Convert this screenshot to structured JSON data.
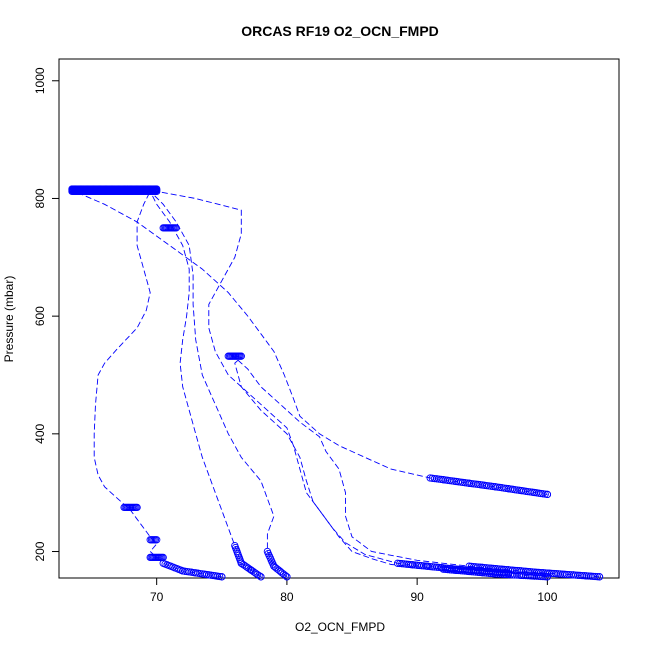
{
  "chart_data": {
    "type": "scatter",
    "title": "ORCAS RF19 O2_OCN_FMPD",
    "xlabel": "O2_OCN_FMPD",
    "ylabel": "Pressure (mbar)",
    "xlim": [
      62.5,
      105.5
    ],
    "ylim": [
      1037,
      155
    ],
    "y_reversed": true,
    "x_ticks": [
      70,
      80,
      90,
      100
    ],
    "y_ticks": [
      200,
      400,
      600,
      800,
      1000
    ],
    "grid": false,
    "legend": "none",
    "marker_color": "#0000ff",
    "series": [
      {
        "points": [
          [
            75,
            157
          ],
          [
            72,
            167
          ],
          [
            70.5,
            180
          ],
          [
            70,
            190
          ],
          [
            69.5,
            200
          ],
          [
            70,
            213
          ],
          [
            69.5,
            225
          ],
          [
            68.5,
            255
          ],
          [
            68,
            270
          ],
          [
            67,
            290
          ],
          [
            66,
            310
          ],
          [
            65.5,
            330
          ],
          [
            65.2,
            360
          ],
          [
            65.2,
            400
          ],
          [
            65.3,
            450
          ],
          [
            65.5,
            500
          ],
          [
            66,
            520
          ],
          [
            67,
            545
          ],
          [
            68.5,
            580
          ],
          [
            69.2,
            610
          ],
          [
            69.5,
            640
          ],
          [
            69,
            680
          ],
          [
            68.5,
            720
          ],
          [
            68.5,
            760
          ],
          [
            69,
            790
          ],
          [
            69.5,
            812
          ],
          [
            67,
            814
          ],
          [
            64,
            814
          ],
          [
            63.5,
            814
          ]
        ]
      },
      {
        "points": [
          [
            78,
            157
          ],
          [
            76.5,
            180
          ],
          [
            76,
            210
          ],
          [
            75.5,
            240
          ],
          [
            75,
            270
          ],
          [
            74.5,
            300
          ],
          [
            74,
            330
          ],
          [
            73.5,
            360
          ],
          [
            73,
            400
          ],
          [
            72.5,
            440
          ],
          [
            72,
            480
          ],
          [
            71.8,
            520
          ],
          [
            72,
            560
          ],
          [
            72.3,
            600
          ],
          [
            72.5,
            640
          ],
          [
            72.5,
            680
          ],
          [
            72,
            720
          ],
          [
            71,
            760
          ],
          [
            70,
            790
          ],
          [
            69.5,
            812
          ]
        ]
      },
      {
        "points": [
          [
            80,
            157
          ],
          [
            79,
            175
          ],
          [
            78.5,
            200
          ],
          [
            78.5,
            230
          ],
          [
            79,
            260
          ],
          [
            78.5,
            290
          ],
          [
            78,
            320
          ],
          [
            76.5,
            360
          ],
          [
            75.5,
            400
          ],
          [
            74.5,
            450
          ],
          [
            73.5,
            500
          ],
          [
            73,
            560
          ],
          [
            72.8,
            620
          ],
          [
            72.8,
            670
          ],
          [
            72.5,
            720
          ],
          [
            71.5,
            760
          ],
          [
            70.5,
            790
          ],
          [
            69.5,
            812
          ]
        ]
      },
      {
        "points": [
          [
            100,
            157
          ],
          [
            96,
            162
          ],
          [
            92,
            170
          ],
          [
            88,
            178
          ],
          [
            86.5,
            188
          ],
          [
            85,
            200
          ],
          [
            84,
            225
          ],
          [
            83,
            255
          ],
          [
            82,
            285
          ],
          [
            81.5,
            320
          ],
          [
            81,
            360
          ],
          [
            80,
            400
          ],
          [
            78,
            440
          ],
          [
            76.5,
            480
          ],
          [
            76,
            520
          ],
          [
            76.5,
            530
          ],
          [
            75.7,
            533
          ]
        ]
      },
      {
        "points": [
          [
            97,
            163
          ],
          [
            93,
            170
          ],
          [
            88.5,
            180
          ],
          [
            86,
            195
          ],
          [
            84.5,
            215
          ],
          [
            83.5,
            240
          ],
          [
            82.5,
            270
          ],
          [
            81.5,
            300
          ],
          [
            81,
            340
          ],
          [
            80.5,
            380
          ],
          [
            80,
            410
          ],
          [
            78.5,
            440
          ],
          [
            77,
            470
          ],
          [
            75.5,
            500
          ],
          [
            74.5,
            540
          ],
          [
            74,
            580
          ],
          [
            74,
            620
          ],
          [
            75,
            660
          ],
          [
            76,
            700
          ],
          [
            76.5,
            740
          ],
          [
            76.5,
            780
          ],
          [
            73,
            800
          ],
          [
            70,
            812
          ],
          [
            69.5,
            814
          ]
        ]
      },
      {
        "points": [
          [
            104,
            157
          ],
          [
            99,
            165
          ],
          [
            94,
            175
          ],
          [
            90,
            185
          ],
          [
            86.5,
            200
          ],
          [
            85,
            225
          ],
          [
            84.5,
            260
          ],
          [
            84.5,
            300
          ],
          [
            84,
            340
          ],
          [
            83,
            370
          ],
          [
            82.5,
            395
          ],
          [
            81,
            420
          ],
          [
            79.5,
            450
          ],
          [
            78,
            480
          ],
          [
            77,
            510
          ],
          [
            76,
            530
          ],
          [
            75.7,
            533
          ]
        ]
      },
      {
        "points": [
          [
            100,
            297
          ],
          [
            96,
            310
          ],
          [
            91,
            325
          ],
          [
            88,
            340
          ],
          [
            86,
            360
          ],
          [
            84,
            380
          ],
          [
            82.5,
            400
          ],
          [
            81,
            430
          ],
          [
            80.5,
            460
          ],
          [
            79.8,
            500
          ],
          [
            79,
            540
          ],
          [
            78,
            570
          ],
          [
            77,
            600
          ],
          [
            75.5,
            640
          ],
          [
            73.5,
            680
          ],
          [
            71,
            720
          ],
          [
            68.5,
            760
          ],
          [
            66,
            790
          ],
          [
            63.5,
            814
          ]
        ]
      }
    ],
    "marker_runs": [
      {
        "x": [
          69.5,
          70.5
        ],
        "y": 190
      },
      {
        "x": [
          69.5,
          70
        ],
        "y": 220
      },
      {
        "x": [
          67.5,
          68.5
        ],
        "y": 275
      },
      {
        "x": [
          75.5,
          76.5
        ],
        "y": 532
      },
      {
        "x": [
          70.5,
          71.5
        ],
        "y": 750
      },
      {
        "x": [
          63.5,
          70
        ],
        "y": 814
      },
      {
        "x": [
          63.5,
          70
        ],
        "y": 816
      },
      {
        "x": [
          63.5,
          70
        ],
        "y": 812
      }
    ]
  }
}
